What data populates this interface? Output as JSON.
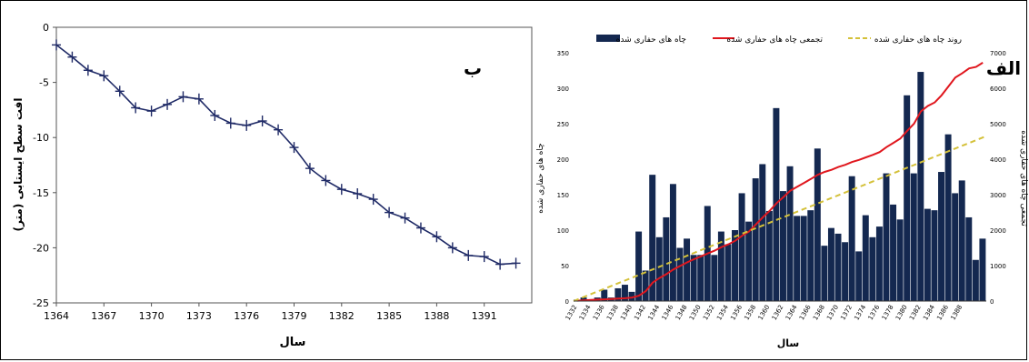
{
  "panels": {
    "left_letter": "ب",
    "right_letter": "الف"
  },
  "chart_data": [
    {
      "type": "line",
      "xlabel": "سال",
      "ylabel": "افت سطح ایستابی (متر)",
      "xlim": [
        1364,
        1394
      ],
      "ylim": [
        -25,
        0
      ],
      "x_ticks": [
        "1364",
        "1367",
        "1370",
        "1373",
        "1376",
        "1379",
        "1382",
        "1385",
        "1388",
        "1391"
      ],
      "y_ticks": [
        "0",
        "-5",
        "-10",
        "-15",
        "-20",
        "-25"
      ],
      "line_color": "#1f2a66",
      "marker": "plus",
      "x": [
        1364,
        1365,
        1366,
        1367,
        1368,
        1369,
        1370,
        1371,
        1372,
        1373,
        1374,
        1375,
        1376,
        1377,
        1378,
        1379,
        1380,
        1381,
        1382,
        1383,
        1384,
        1385,
        1386,
        1387,
        1388,
        1389,
        1390,
        1391,
        1392,
        1393
      ],
      "y": [
        -1.6,
        -2.7,
        -3.9,
        -4.4,
        -5.8,
        -7.3,
        -7.6,
        -7.0,
        -6.3,
        -6.5,
        -8.0,
        -8.7,
        -8.9,
        -8.5,
        -9.3,
        -10.9,
        -12.8,
        -13.9,
        -14.7,
        -15.1,
        -15.6,
        -16.8,
        -17.3,
        -18.2,
        -19.0,
        -20.0,
        -20.7,
        -20.8,
        -21.5,
        -21.4
      ]
    },
    {
      "type": "bar",
      "xlabel": "سال",
      "ylabel_left": "چاه های حفاری شده",
      "ylabel_right": "تجمعی چاه های حفاری شده",
      "ylim_left": [
        0,
        350
      ],
      "ylim_right": [
        0,
        7000
      ],
      "y_ticks_left": [
        "0",
        "50",
        "100",
        "150",
        "200",
        "250",
        "300",
        "350"
      ],
      "y_ticks_right": [
        "0",
        "1000",
        "2000",
        "3000",
        "4000",
        "5000",
        "6000",
        "7000"
      ],
      "x_tick_labels": [
        "1332",
        "1334",
        "1336",
        "1338",
        "1340",
        "1342",
        "1344",
        "1346",
        "1348",
        "1350",
        "1352",
        "1354",
        "1356",
        "1358",
        "1360",
        "1362",
        "1364",
        "1366",
        "1368",
        "1370",
        "1372",
        "1374",
        "1376",
        "1378",
        "1380",
        "1382",
        "1384",
        "1386",
        "1388"
      ],
      "legend": [
        "چاه های حفاری شده",
        "تجمعی چاه های حفاری شده",
        "روند چاه های حفاری شده"
      ],
      "colors": {
        "bars": "#142850",
        "cumulative": "#e0171e",
        "trend": "#d4c13a"
      },
      "years_start": 1332,
      "values": [
        2,
        5,
        2,
        5,
        16,
        5,
        18,
        23,
        13,
        98,
        43,
        178,
        90,
        118,
        165,
        75,
        88,
        65,
        65,
        134,
        65,
        98,
        80,
        100,
        152,
        112,
        173,
        193,
        127,
        272,
        155,
        190,
        120,
        120,
        128,
        215,
        78,
        103,
        95,
        83,
        176,
        70,
        121,
        90,
        105,
        180,
        136,
        115,
        290,
        180,
        323,
        130,
        128,
        182,
        235,
        152,
        170,
        118,
        58,
        88
      ],
      "cumulative": [
        10,
        20,
        30,
        40,
        50,
        60,
        70,
        80,
        100,
        150,
        280,
        520,
        650,
        760,
        890,
        990,
        1090,
        1180,
        1260,
        1340,
        1420,
        1520,
        1600,
        1700,
        1840,
        1960,
        2160,
        2360,
        2540,
        2760,
        2930,
        3110,
        3220,
        3330,
        3440,
        3560,
        3640,
        3700,
        3780,
        3840,
        3920,
        3980,
        4050,
        4120,
        4200,
        4340,
        4460,
        4580,
        4800,
        5000,
        5350,
        5500,
        5600,
        5800,
        6050,
        6300,
        6420,
        6560,
        6600,
        6720
      ],
      "trend_start": 0,
      "trend_end": 4650
    }
  ]
}
